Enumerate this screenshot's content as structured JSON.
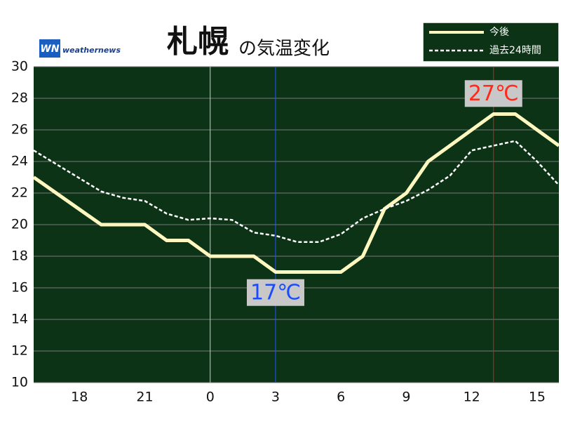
{
  "chart_data": {
    "type": "line",
    "title": "札幌",
    "title_suffix": "の気温変化",
    "logo": {
      "mark": "WN",
      "text": "weathernews"
    },
    "xlim": [
      15.9,
      40
    ],
    "ylim": [
      10,
      30
    ],
    "xticks": [
      18,
      21,
      {
        "value": 24,
        "label": "0"
      },
      {
        "value": 27,
        "label": "3"
      },
      {
        "value": 30,
        "label": "6"
      },
      {
        "value": 33,
        "label": "9"
      },
      {
        "value": 36,
        "label": "12"
      },
      {
        "value": 39,
        "label": "15"
      }
    ],
    "yticks": [
      10,
      12,
      14,
      16,
      18,
      20,
      22,
      24,
      26,
      28,
      30
    ],
    "grid": true,
    "legend": "top-right",
    "series": [
      {
        "name": "今後",
        "color": "#fff7c0",
        "dash": false,
        "x": [
          15.9,
          19,
          21,
          22,
          23,
          24,
          26,
          27,
          30,
          31,
          32,
          33,
          34,
          36,
          37,
          38,
          40
        ],
        "values": [
          23,
          20,
          20,
          19,
          19,
          18,
          18,
          17,
          17,
          18,
          21,
          22,
          24,
          26,
          27,
          27,
          25
        ]
      },
      {
        "name": "過去24時間",
        "color": "#ffffff",
        "dash": true,
        "x": [
          15.9,
          19,
          20,
          21,
          22,
          23,
          24,
          25,
          26,
          27,
          28,
          29,
          30,
          31,
          32,
          33,
          34,
          35,
          36,
          37,
          38,
          39,
          40
        ],
        "values": [
          24.7,
          22.1,
          21.7,
          21.5,
          20.7,
          20.3,
          20.4,
          20.3,
          19.5,
          19.3,
          18.9,
          18.9,
          19.4,
          20.4,
          21.0,
          21.5,
          22.2,
          23.1,
          24.7,
          25.0,
          25.3,
          24.0,
          22.5
        ]
      }
    ],
    "vlines": [
      {
        "x": 24,
        "color": "#cccccc"
      },
      {
        "x": 27,
        "color": "#2255ff"
      },
      {
        "x": 37,
        "color": "#cc2222"
      }
    ],
    "annotations": [
      {
        "text": "27℃",
        "x": 37,
        "y": 28.3,
        "color": "#ff2a1a"
      },
      {
        "text": "17℃",
        "x": 27,
        "y": 15.7,
        "color": "#1a4cff"
      }
    ]
  }
}
